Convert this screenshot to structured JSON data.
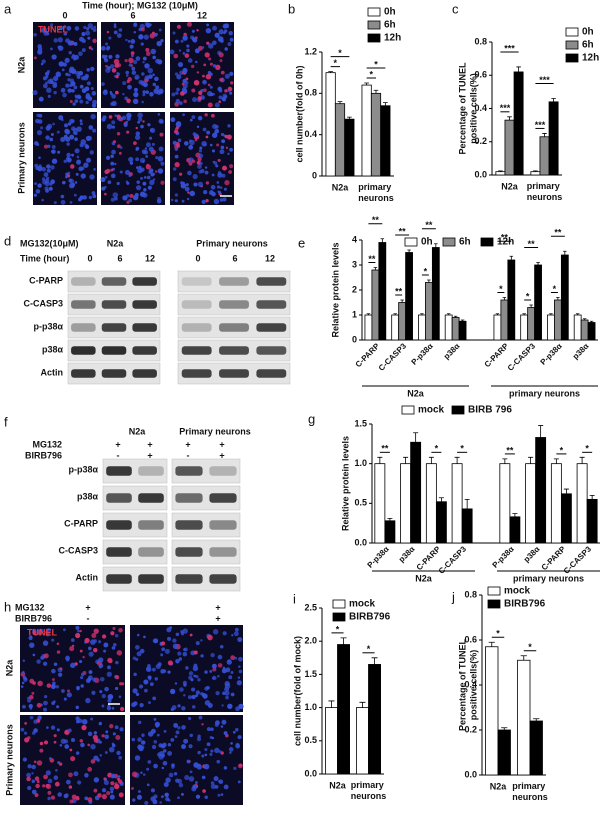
{
  "panel_labels": [
    "a",
    "b",
    "c",
    "d",
    "e",
    "f",
    "g",
    "h",
    "i",
    "j"
  ],
  "panel_a": {
    "title": "Time (hour); MG132 (10μM)",
    "columns": [
      "0",
      "6",
      "12"
    ],
    "stain": "TUNEL",
    "rows": [
      "N2a",
      "Primary neurons"
    ]
  },
  "panel_d": {
    "treatment": "MG132(10μM)",
    "time_label": "Time (hour)",
    "groups": [
      "N2a",
      "Primary  neurons"
    ],
    "times": [
      "0",
      "6",
      "12",
      "0",
      "6",
      "12"
    ],
    "rows": [
      "C-PARP",
      "C-CASP3",
      "p-p38α",
      "p38α",
      "Actin"
    ]
  },
  "panel_f": {
    "treatments": [
      "MG132",
      "BIRB796"
    ],
    "groups": [
      "N2a",
      "Primary  neurons"
    ],
    "signs": [
      [
        "+",
        "+",
        "+",
        "+"
      ],
      [
        "-",
        "+",
        "-",
        "+"
      ]
    ],
    "rows": [
      "p-p38α",
      "p38α",
      "C-PARP",
      "C-CASP3",
      "Actin"
    ]
  },
  "panel_h": {
    "treatments": [
      "MG132",
      "BIRB796"
    ],
    "signs": [
      [
        "+",
        "+"
      ],
      [
        "-",
        "+"
      ]
    ],
    "stain": "TUNEL",
    "rows": [
      "N2a",
      "Primary neurons"
    ]
  },
  "chart_data": [
    {
      "type": "bar",
      "y_label": "cell number(fold of 0h)",
      "categories": [
        "N2a",
        "primary neurons"
      ],
      "series": [
        {
          "name": "0h",
          "color": "#ffffff",
          "values": [
            1.0,
            0.88
          ],
          "errors": [
            0.01,
            0.02
          ]
        },
        {
          "name": "6h",
          "color": "#8c8c8c",
          "values": [
            0.7,
            0.8
          ],
          "errors": [
            0.02,
            0.03
          ]
        },
        {
          "name": "12h",
          "color": "#000000",
          "values": [
            0.55,
            0.68
          ],
          "errors": [
            0.02,
            0.03
          ]
        }
      ],
      "ylim": [
        0,
        1.2
      ],
      "yticks": [
        0,
        0.4,
        0.8,
        1.2
      ],
      "significance": [
        "*",
        "*",
        "*",
        "*"
      ]
    },
    {
      "type": "bar",
      "y_label": [
        "Percentage of TUNEL",
        "positive cells(%)"
      ],
      "categories": [
        "N2a",
        "primary neurons"
      ],
      "series": [
        {
          "name": "0h",
          "color": "#ffffff",
          "values": [
            0.02,
            0.02
          ],
          "errors": [
            0.005,
            0.005
          ]
        },
        {
          "name": "6h",
          "color": "#8c8c8c",
          "values": [
            0.33,
            0.23
          ],
          "errors": [
            0.02,
            0.02
          ]
        },
        {
          "name": "12h",
          "color": "#000000",
          "values": [
            0.62,
            0.44
          ],
          "errors": [
            0.03,
            0.02
          ]
        }
      ],
      "ylim": [
        0,
        0.8
      ],
      "yticks": [
        {
          "value": 0,
          "label": "0.0"
        },
        0.2,
        0.4,
        0.6,
        0.8
      ],
      "significance": [
        "***",
        "***",
        "***",
        "***"
      ]
    },
    {
      "type": "bar",
      "y_label": "Relative protein levels",
      "categories": [
        "C-PARP",
        "C-CASP3",
        "P-p38α",
        "p38α",
        "C-PARP",
        "C-CASP3",
        "P-p38α",
        "p38α"
      ],
      "groups": [
        "N2a",
        "primary neurons"
      ],
      "series": [
        {
          "name": "0h",
          "color": "#ffffff",
          "values": [
            1,
            1,
            1,
            1,
            1,
            1,
            1,
            1
          ],
          "errors": [
            0.05,
            0.05,
            0.05,
            0.05,
            0.05,
            0.05,
            0.05,
            0.05
          ]
        },
        {
          "name": "6h",
          "color": "#8c8c8c",
          "values": [
            2.8,
            1.5,
            2.3,
            0.9,
            1.6,
            1.3,
            1.6,
            0.8
          ],
          "errors": [
            0.1,
            0.1,
            0.1,
            0.05,
            0.1,
            0.1,
            0.1,
            0.05
          ]
        },
        {
          "name": "12h",
          "color": "#000000",
          "values": [
            3.9,
            3.5,
            3.7,
            0.75,
            3.2,
            3.0,
            3.4,
            0.7
          ],
          "errors": [
            0.15,
            0.1,
            0.15,
            0.05,
            0.15,
            0.1,
            0.15,
            0.05
          ]
        }
      ],
      "ylim": [
        0,
        4
      ],
      "yticks": [
        0,
        1,
        2,
        3,
        4
      ],
      "significance": [
        "**",
        "**",
        "**",
        "**",
        "*",
        "**",
        "*",
        "**",
        "*",
        "**",
        "*",
        "**"
      ]
    },
    {
      "type": "bar",
      "y_label": "Relative protein levels",
      "categories": [
        "P-p38α",
        "p38α",
        "C-PARP",
        "C-CASP3",
        "P-p38α",
        "p38α",
        "C-PARP",
        "C-CASP3"
      ],
      "groups": [
        "N2a",
        "primary neurons"
      ],
      "series": [
        {
          "name": "mock",
          "color": "#ffffff",
          "values": [
            1,
            1,
            1,
            1,
            1,
            1,
            1,
            1
          ],
          "errors": [
            0.08,
            0.08,
            0.08,
            0.08,
            0.06,
            0.08,
            0.06,
            0.08
          ]
        },
        {
          "name": "BIRB 796",
          "color": "#000000",
          "values": [
            0.28,
            1.27,
            0.52,
            0.43,
            0.33,
            1.33,
            0.62,
            0.55
          ],
          "errors": [
            0.03,
            0.12,
            0.05,
            0.12,
            0.04,
            0.15,
            0.06,
            0.05
          ]
        }
      ],
      "ylim": [
        0,
        1.5
      ],
      "yticks": [
        {
          "value": 0,
          "label": "0.0"
        },
        0.5,
        {
          "value": 1,
          "label": "1.0"
        },
        1.5
      ],
      "significance": [
        "**",
        "*",
        "*",
        "**",
        "*",
        "*"
      ]
    },
    {
      "type": "bar",
      "y_label": "cell number(fold of mock)",
      "categories": [
        "N2a",
        "primary neurons"
      ],
      "series": [
        {
          "name": "mock",
          "color": "#ffffff",
          "values": [
            1.0,
            1.0
          ],
          "errors": [
            0.1,
            0.08
          ]
        },
        {
          "name": "BIRB796",
          "color": "#000000",
          "values": [
            1.95,
            1.65
          ],
          "errors": [
            0.1,
            0.1
          ]
        }
      ],
      "ylim": [
        0,
        2.5
      ],
      "yticks": [
        {
          "value": 0,
          "label": "0.0"
        },
        0.5,
        {
          "value": 1,
          "label": "1.0"
        },
        1.5,
        {
          "value": 2,
          "label": "2.0"
        },
        2.5
      ],
      "significance": [
        "*",
        "*"
      ]
    },
    {
      "type": "bar",
      "y_label": [
        "Percentage of TUNEL",
        "positive cells(%)"
      ],
      "categories": [
        "N2a",
        "primary neurons"
      ],
      "series": [
        {
          "name": "mock",
          "color": "#ffffff",
          "values": [
            0.57,
            0.51
          ],
          "errors": [
            0.02,
            0.02
          ]
        },
        {
          "name": "BIRB796",
          "color": "#000000",
          "values": [
            0.2,
            0.24
          ],
          "errors": [
            0.01,
            0.01
          ]
        }
      ],
      "ylim": [
        0,
        0.8
      ],
      "yticks": [
        {
          "value": 0,
          "label": "0.0"
        },
        0.2,
        0.4,
        0.6,
        0.8
      ],
      "significance": [
        "*",
        "*"
      ]
    }
  ]
}
